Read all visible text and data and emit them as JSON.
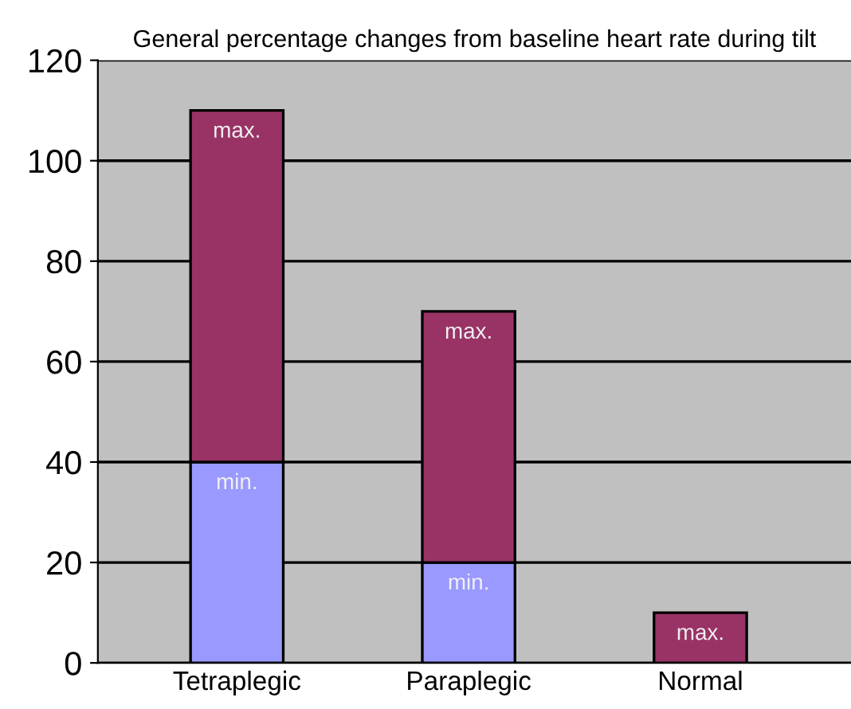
{
  "chart_data": {
    "type": "bar",
    "title": "General percentage changes from baseline heart rate during tilt",
    "categories": [
      "Tetraplegic",
      "Paraplegic",
      "Normal"
    ],
    "stacked": true,
    "series": [
      {
        "color": "#9999ff",
        "values": [
          40,
          20,
          0
        ],
        "value_labels": [
          "min.",
          "min.",
          null
        ]
      },
      {
        "color": "#993366",
        "values": [
          70,
          50,
          10
        ],
        "value_labels": [
          "max.",
          "max.",
          "max."
        ]
      }
    ],
    "ylim": [
      0,
      120
    ],
    "yticks": [
      0,
      20,
      40,
      60,
      80,
      100,
      120
    ],
    "grid": "y",
    "legend": false
  }
}
